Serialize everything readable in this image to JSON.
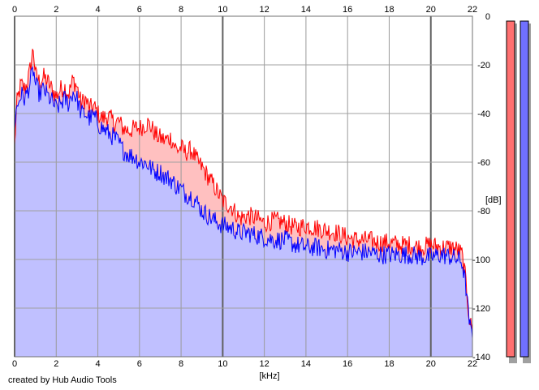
{
  "chart_data": {
    "type": "area",
    "x_unit": "[kHz]",
    "y_unit": "[dB]",
    "xlim": [
      0,
      22
    ],
    "ylim": [
      -140,
      0
    ],
    "x_ticks": [
      "0",
      "2",
      "4",
      "6",
      "8",
      "10",
      "12",
      "14",
      "16",
      "18",
      "20",
      "22"
    ],
    "y_ticks": [
      "0",
      "-20",
      "-40",
      "-60",
      "-80",
      "-100",
      "-120",
      "-140"
    ],
    "grid": true,
    "series": [
      {
        "color": "#ff0000",
        "fill": "#ffc0c0",
        "points": [
          [
            0,
            -54
          ],
          [
            0.1,
            -36
          ],
          [
            0.3,
            -28
          ],
          [
            0.5,
            -30
          ],
          [
            0.7,
            -24
          ],
          [
            0.9,
            -13
          ],
          [
            1.0,
            -24
          ],
          [
            1.2,
            -27
          ],
          [
            1.4,
            -25
          ],
          [
            1.6,
            -27
          ],
          [
            1.8,
            -30
          ],
          [
            2.0,
            -33
          ],
          [
            2.2,
            -30
          ],
          [
            2.4,
            -29
          ],
          [
            2.6,
            -32
          ],
          [
            2.8,
            -26
          ],
          [
            3.0,
            -29
          ],
          [
            3.2,
            -36
          ],
          [
            3.4,
            -34
          ],
          [
            3.6,
            -38
          ],
          [
            3.8,
            -37
          ],
          [
            4.0,
            -40
          ],
          [
            4.2,
            -42
          ],
          [
            4.5,
            -41
          ],
          [
            4.8,
            -44
          ],
          [
            5.0,
            -43
          ],
          [
            5.2,
            -46
          ],
          [
            5.5,
            -47
          ],
          [
            5.8,
            -46
          ],
          [
            6.0,
            -46
          ],
          [
            6.2,
            -45
          ],
          [
            6.4,
            -44
          ],
          [
            6.6,
            -46
          ],
          [
            6.8,
            -49
          ],
          [
            7.0,
            -50
          ],
          [
            7.2,
            -51
          ],
          [
            7.5,
            -50
          ],
          [
            7.8,
            -55
          ],
          [
            8.0,
            -54
          ],
          [
            8.2,
            -56
          ],
          [
            8.5,
            -55
          ],
          [
            8.8,
            -60
          ],
          [
            9.0,
            -62
          ],
          [
            9.3,
            -66
          ],
          [
            9.6,
            -70
          ],
          [
            10.0,
            -76
          ],
          [
            10.4,
            -78
          ],
          [
            10.8,
            -83
          ],
          [
            11.2,
            -82
          ],
          [
            11.6,
            -83
          ],
          [
            12.0,
            -85
          ],
          [
            12.5,
            -84
          ],
          [
            13.0,
            -85
          ],
          [
            13.5,
            -87
          ],
          [
            14.0,
            -86
          ],
          [
            14.5,
            -87
          ],
          [
            15.0,
            -88
          ],
          [
            15.5,
            -89
          ],
          [
            16.0,
            -91
          ],
          [
            16.5,
            -92
          ],
          [
            17.0,
            -92
          ],
          [
            17.5,
            -93
          ],
          [
            18.0,
            -93
          ],
          [
            18.5,
            -94
          ],
          [
            19.0,
            -94
          ],
          [
            19.5,
            -95
          ],
          [
            20.0,
            -94
          ],
          [
            20.5,
            -95
          ],
          [
            21.0,
            -95
          ],
          [
            21.3,
            -96
          ],
          [
            21.5,
            -98
          ],
          [
            21.7,
            -110
          ],
          [
            21.8,
            -120
          ],
          [
            21.9,
            -127
          ],
          [
            22.0,
            -128
          ]
        ]
      },
      {
        "color": "#0000ff",
        "fill": "#c0c0ff",
        "points": [
          [
            0,
            -44
          ],
          [
            0.1,
            -38
          ],
          [
            0.3,
            -32
          ],
          [
            0.5,
            -34
          ],
          [
            0.7,
            -29
          ],
          [
            0.9,
            -22
          ],
          [
            1.0,
            -28
          ],
          [
            1.2,
            -32
          ],
          [
            1.4,
            -30
          ],
          [
            1.6,
            -33
          ],
          [
            1.8,
            -35
          ],
          [
            2.0,
            -38
          ],
          [
            2.2,
            -36
          ],
          [
            2.4,
            -34
          ],
          [
            2.6,
            -36
          ],
          [
            2.8,
            -31
          ],
          [
            3.0,
            -34
          ],
          [
            3.2,
            -40
          ],
          [
            3.4,
            -40
          ],
          [
            3.6,
            -42
          ],
          [
            3.8,
            -41
          ],
          [
            4.0,
            -44
          ],
          [
            4.2,
            -46
          ],
          [
            4.5,
            -48
          ],
          [
            4.8,
            -50
          ],
          [
            5.0,
            -52
          ],
          [
            5.2,
            -55
          ],
          [
            5.5,
            -57
          ],
          [
            5.8,
            -58
          ],
          [
            6.0,
            -60
          ],
          [
            6.2,
            -60
          ],
          [
            6.4,
            -61
          ],
          [
            6.6,
            -63
          ],
          [
            6.8,
            -64
          ],
          [
            7.0,
            -64
          ],
          [
            7.2,
            -66
          ],
          [
            7.5,
            -67
          ],
          [
            7.8,
            -70
          ],
          [
            8.0,
            -71
          ],
          [
            8.2,
            -73
          ],
          [
            8.5,
            -74
          ],
          [
            8.8,
            -77
          ],
          [
            9.0,
            -80
          ],
          [
            9.3,
            -82
          ],
          [
            9.6,
            -84
          ],
          [
            10.0,
            -86
          ],
          [
            10.4,
            -87
          ],
          [
            10.8,
            -89
          ],
          [
            11.2,
            -89
          ],
          [
            11.6,
            -90
          ],
          [
            12.0,
            -91
          ],
          [
            12.5,
            -92
          ],
          [
            13.0,
            -92
          ],
          [
            13.5,
            -94
          ],
          [
            14.0,
            -95
          ],
          [
            14.5,
            -95
          ],
          [
            15.0,
            -96
          ],
          [
            15.5,
            -96
          ],
          [
            16.0,
            -97
          ],
          [
            16.5,
            -97
          ],
          [
            17.0,
            -97
          ],
          [
            17.5,
            -98
          ],
          [
            18.0,
            -98
          ],
          [
            18.5,
            -98
          ],
          [
            19.0,
            -98
          ],
          [
            19.5,
            -99
          ],
          [
            20.0,
            -99
          ],
          [
            20.5,
            -98
          ],
          [
            21.0,
            -99
          ],
          [
            21.3,
            -100
          ],
          [
            21.5,
            -101
          ],
          [
            21.7,
            -112
          ],
          [
            21.8,
            -122
          ],
          [
            21.9,
            -129
          ],
          [
            22.0,
            -131
          ]
        ]
      }
    ]
  },
  "meters": [
    {
      "fill": "#ff7070"
    },
    {
      "fill": "#7070ff"
    }
  ],
  "credit": "created by Hub Audio Tools"
}
